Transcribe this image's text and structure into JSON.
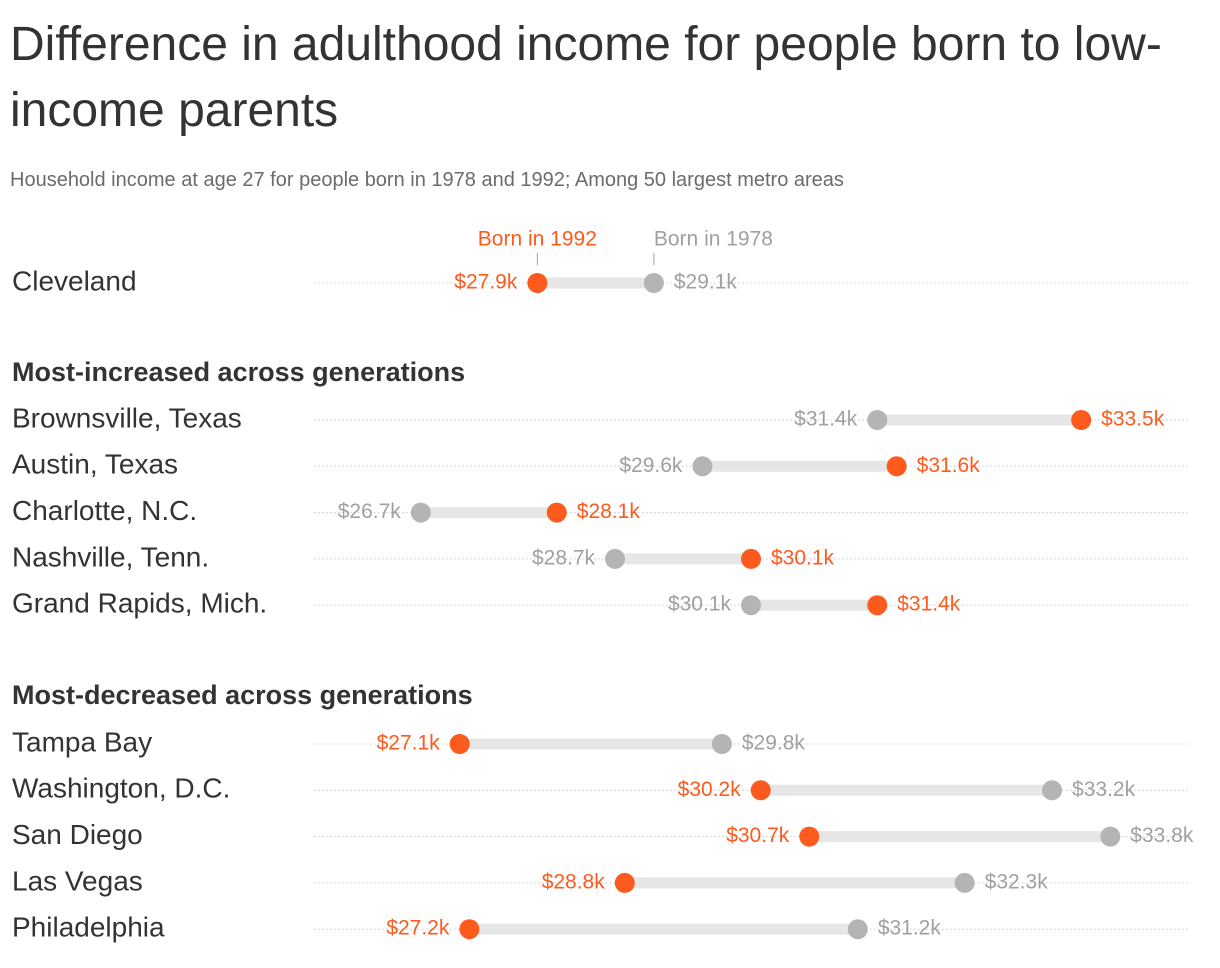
{
  "chart_data": {
    "type": "dumbbell",
    "title": "Difference in adulthood income for people born to low-income parents",
    "subtitle": "Household income at age 27 for people born in 1978 and 1992; Among 50 largest metro areas",
    "legend": {
      "born_1992": "Born in 1992",
      "born_1978": "Born in 1978"
    },
    "colors": {
      "born_1992": "#fd5a1e",
      "born_1978": "#b4b4b4",
      "bar": "#e6e6e6",
      "gridline": "#c8c8c8"
    },
    "unit": "thousand dollars",
    "xlim": [
      25.6,
      34.6
    ],
    "groups": [
      {
        "title": "",
        "rows": [
          {
            "label": "Cleveland",
            "born_1992": 27.9,
            "born_1978": 29.1,
            "label_1992": "$27.9k",
            "label_1978": "$29.1k"
          }
        ]
      },
      {
        "title": "Most-increased across generations",
        "rows": [
          {
            "label": "Brownsville, Texas",
            "born_1992": 33.5,
            "born_1978": 31.4,
            "label_1992": "$33.5k",
            "label_1978": "$31.4k"
          },
          {
            "label": "Austin, Texas",
            "born_1992": 31.6,
            "born_1978": 29.6,
            "label_1992": "$31.6k",
            "label_1978": "$29.6k"
          },
          {
            "label": "Charlotte, N.C.",
            "born_1992": 28.1,
            "born_1978": 26.7,
            "label_1992": "$28.1k",
            "label_1978": "$26.7k"
          },
          {
            "label": "Nashville, Tenn.",
            "born_1992": 30.1,
            "born_1978": 28.7,
            "label_1992": "$30.1k",
            "label_1978": "$28.7k"
          },
          {
            "label": "Grand Rapids, Mich.",
            "born_1992": 31.4,
            "born_1978": 30.1,
            "label_1992": "$31.4k",
            "label_1978": "$30.1k"
          }
        ]
      },
      {
        "title": "Most-decreased across generations",
        "rows": [
          {
            "label": "Tampa Bay",
            "born_1992": 27.1,
            "born_1978": 29.8,
            "label_1992": "$27.1k",
            "label_1978": "$29.8k"
          },
          {
            "label": "Washington, D.C.",
            "born_1992": 30.2,
            "born_1978": 33.2,
            "label_1992": "$30.2k",
            "label_1978": "$33.2k"
          },
          {
            "label": "San Diego",
            "born_1992": 30.7,
            "born_1978": 33.8,
            "label_1992": "$30.7k",
            "label_1978": "$33.8k"
          },
          {
            "label": "Las Vegas",
            "born_1992": 28.8,
            "born_1978": 32.3,
            "label_1992": "$28.8k",
            "label_1978": "$32.3k"
          },
          {
            "label": "Philadelphia",
            "born_1992": 27.2,
            "born_1978": 31.2,
            "label_1992": "$27.2k",
            "label_1978": "$31.2k"
          }
        ]
      }
    ]
  }
}
